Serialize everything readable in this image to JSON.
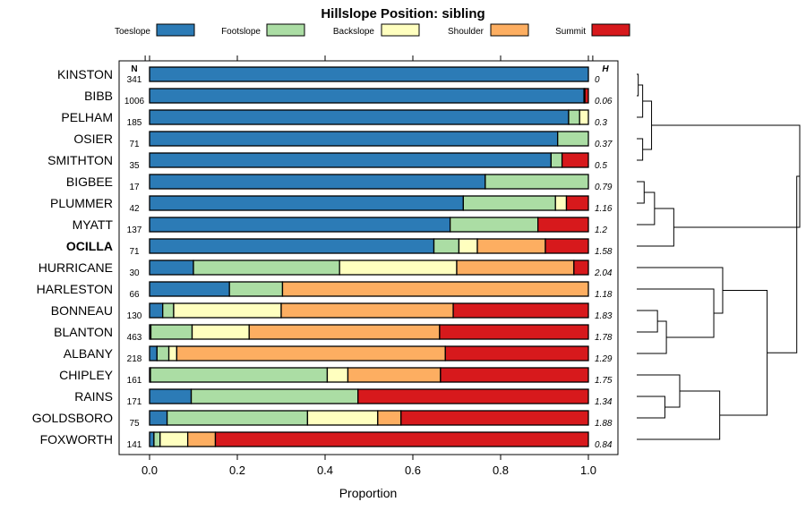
{
  "chart_data": {
    "type": "bar",
    "title": "Hillslope Position: sibling",
    "xlabel": "Proportion",
    "xlim": [
      0,
      1
    ],
    "xticks": [
      "0.0",
      "0.2",
      "0.4",
      "0.6",
      "0.8",
      "1.0"
    ],
    "legend_position": "top",
    "n_header": "N",
    "h_header": "H",
    "categories_legend": [
      {
        "name": "Toeslope",
        "color": "#2c7bb6"
      },
      {
        "name": "Footslope",
        "color": "#abdda4"
      },
      {
        "name": "Backslope",
        "color": "#ffffbf"
      },
      {
        "name": "Shoulder",
        "color": "#fdae61"
      },
      {
        "name": "Summit",
        "color": "#d7191c"
      }
    ],
    "rows": [
      {
        "name": "KINSTON",
        "n": "341",
        "h": "0",
        "bold": false,
        "values": [
          1.0,
          0,
          0,
          0,
          0
        ]
      },
      {
        "name": "BIBB",
        "n": "1006",
        "h": "0.06",
        "bold": false,
        "values": [
          0.99,
          0.002,
          0,
          0,
          0.008
        ]
      },
      {
        "name": "PELHAM",
        "n": "185",
        "h": "0.3",
        "bold": false,
        "values": [
          0.955,
          0.025,
          0.02,
          0,
          0
        ]
      },
      {
        "name": "OSIER",
        "n": "71",
        "h": "0.37",
        "bold": false,
        "values": [
          0.93,
          0.07,
          0,
          0,
          0
        ]
      },
      {
        "name": "SMITHTON",
        "n": "35",
        "h": "0.5",
        "bold": false,
        "values": [
          0.915,
          0.025,
          0,
          0,
          0.06
        ]
      },
      {
        "name": "BIGBEE",
        "n": "17",
        "h": "0.79",
        "bold": false,
        "values": [
          0.765,
          0.235,
          0,
          0,
          0
        ]
      },
      {
        "name": "PLUMMER",
        "n": "42",
        "h": "1.16",
        "bold": false,
        "values": [
          0.715,
          0.21,
          0.025,
          0,
          0.05
        ]
      },
      {
        "name": "MYATT",
        "n": "137",
        "h": "1.2",
        "bold": false,
        "values": [
          0.685,
          0.2,
          0,
          0,
          0.115
        ]
      },
      {
        "name": "OCILLA",
        "n": "71",
        "h": "1.58",
        "bold": true,
        "values": [
          0.648,
          0.057,
          0.042,
          0.155,
          0.098
        ]
      },
      {
        "name": "HURRICANE",
        "n": "30",
        "h": "2.04",
        "bold": false,
        "values": [
          0.1,
          0.333,
          0.267,
          0.267,
          0.033
        ]
      },
      {
        "name": "HARLESTON",
        "n": "66",
        "h": "1.18",
        "bold": false,
        "values": [
          0.182,
          0.121,
          0,
          0.697,
          0
        ]
      },
      {
        "name": "BONNEAU",
        "n": "130",
        "h": "1.83",
        "bold": false,
        "values": [
          0.03,
          0.025,
          0.245,
          0.392,
          0.308
        ]
      },
      {
        "name": "BLANTON",
        "n": "463",
        "h": "1.78",
        "bold": false,
        "values": [
          0.003,
          0.094,
          0.13,
          0.434,
          0.339
        ]
      },
      {
        "name": "ALBANY",
        "n": "218",
        "h": "1.29",
        "bold": false,
        "values": [
          0.017,
          0.027,
          0.018,
          0.612,
          0.326
        ]
      },
      {
        "name": "CHIPLEY",
        "n": "161",
        "h": "1.75",
        "bold": false,
        "values": [
          0.002,
          0.403,
          0.047,
          0.211,
          0.337
        ]
      },
      {
        "name": "RAINS",
        "n": "171",
        "h": "1.34",
        "bold": false,
        "values": [
          0.095,
          0.38,
          0,
          0,
          0.525
        ]
      },
      {
        "name": "GOLDSBORO",
        "n": "75",
        "h": "1.88",
        "bold": false,
        "values": [
          0.04,
          0.32,
          0.16,
          0.053,
          0.427
        ]
      },
      {
        "name": "FOXWORTH",
        "n": "141",
        "h": "0.84",
        "bold": false,
        "values": [
          0.01,
          0.014,
          0.063,
          0.063,
          0.85
        ]
      }
    ],
    "dendrogram": {
      "merges": [
        {
          "id": "A",
          "a": "r0",
          "b": "r1",
          "height": 0.05
        },
        {
          "id": "B",
          "a": "r2",
          "b": "A",
          "height": 0.2
        },
        {
          "id": "C",
          "a": "r3",
          "b": "r4",
          "height": 0.2
        },
        {
          "id": "D",
          "a": "B",
          "b": "C",
          "height": 0.5
        },
        {
          "id": "E",
          "a": "r5",
          "b": "r6",
          "height": 0.25
        },
        {
          "id": "F",
          "a": "E",
          "b": "r7",
          "height": 0.6
        },
        {
          "id": "G",
          "a": "F",
          "b": "r8",
          "height": 1.25
        },
        {
          "id": "H",
          "a": "D",
          "b": "G",
          "height": 5.5
        },
        {
          "id": "I",
          "a": "r11",
          "b": "r12",
          "height": 0.7
        },
        {
          "id": "J",
          "a": "I",
          "b": "r13",
          "height": 1.0
        },
        {
          "id": "K",
          "a": "J",
          "b": "r10",
          "height": 2.6
        },
        {
          "id": "L",
          "a": "K",
          "b": "r9",
          "height": 2.9
        },
        {
          "id": "M",
          "a": "r15",
          "b": "r16",
          "height": 0.95
        },
        {
          "id": "N",
          "a": "r14",
          "b": "M",
          "height": 1.45
        },
        {
          "id": "O",
          "a": "N",
          "b": "r17",
          "height": 2.8
        },
        {
          "id": "P",
          "a": "L",
          "b": "O",
          "height": 4.4
        },
        {
          "id": "Q",
          "a": "H",
          "b": "P",
          "height": 5.4
        }
      ],
      "max_height": 5.5
    }
  }
}
